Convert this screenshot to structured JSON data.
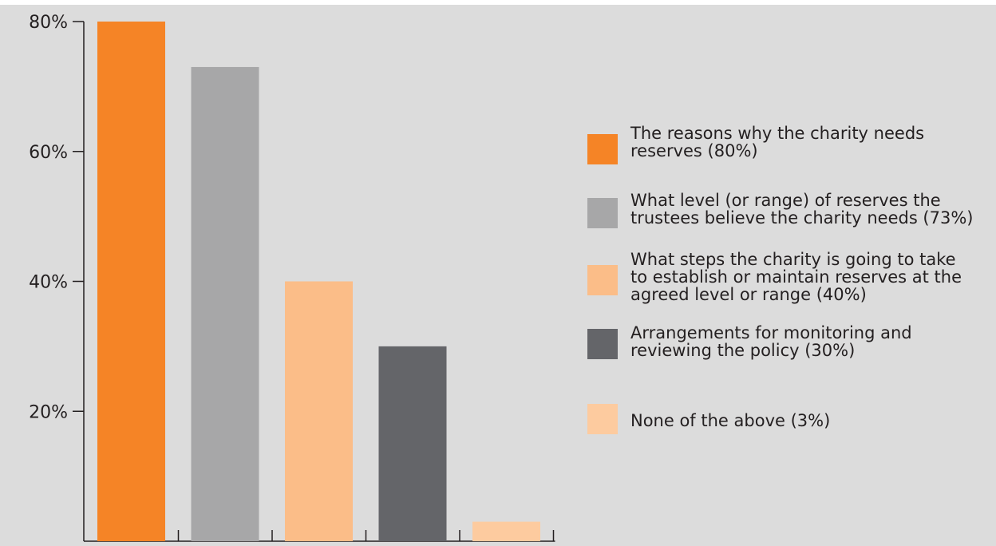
{
  "chart_data": {
    "type": "bar",
    "categories": [
      "The reasons why the charity needs reserves (80%)",
      "What level (or range) of reserves the trustees believe the charity needs (73%)",
      "What steps the charity is going to take to establish or maintain reserves at the agreed level or range (40%)",
      "Arrangements for monitoring and reviewing the policy (30%)",
      "None of the above (3%)"
    ],
    "values": [
      80,
      73,
      40,
      30,
      3
    ],
    "colors": [
      "#f58426",
      "#a7a7a8",
      "#fbbd88",
      "#646569",
      "#fdcb9f"
    ],
    "ylim": [
      0,
      80
    ],
    "yticks": [
      20,
      40,
      60,
      80
    ],
    "ytick_labels": [
      "20%",
      "40%",
      "60%",
      "80%"
    ],
    "legend_position": "right",
    "grid": false
  },
  "legend": {
    "items": [
      {
        "label": "The reasons why the charity needs\nreserves (80%)",
        "color": "#f58426"
      },
      {
        "label": "What level (or range) of reserves the\ntrustees believe the charity needs (73%)",
        "color": "#a7a7a8"
      },
      {
        "label": "What steps the charity is going to take\nto establish or maintain reserves at the\nagreed level or range (40%)",
        "color": "#fbbd88"
      },
      {
        "label": "Arrangements for monitoring and\nreviewing the policy (30%)",
        "color": "#646569"
      },
      {
        "label": "None of the above (3%)",
        "color": "#fdcb9f"
      }
    ]
  }
}
